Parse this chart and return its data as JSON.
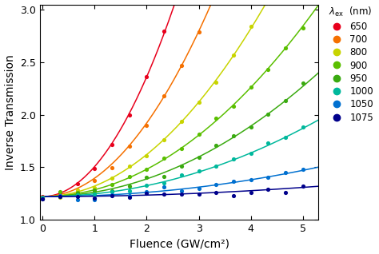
{
  "title": "",
  "xlabel": "Fluence (GW/cm²)",
  "ylabel": "Inverse Transmission",
  "xlim": [
    -0.05,
    5.3
  ],
  "ylim": [
    1.0,
    3.05
  ],
  "xticks": [
    0,
    1,
    2,
    3,
    4,
    5
  ],
  "yticks": [
    1.0,
    1.5,
    2.0,
    2.5,
    3.0
  ],
  "series": [
    {
      "label": "650",
      "color": "#e8001c",
      "beta": 0.285
    },
    {
      "label": "700",
      "color": "#f57000",
      "beta": 0.175
    },
    {
      "label": "800",
      "color": "#c8d400",
      "beta": 0.1
    },
    {
      "label": "900",
      "color": "#5abf00",
      "beta": 0.065
    },
    {
      "label": "950",
      "color": "#3aaa10",
      "beta": 0.042
    },
    {
      "label": "1000",
      "color": "#00b89c",
      "beta": 0.026
    },
    {
      "label": "1050",
      "color": "#0070d0",
      "beta": 0.01
    },
    {
      "label": "1075",
      "color": "#00008b",
      "beta": 0.0035
    }
  ],
  "T0_inv": 1.22,
  "n_scatter": 16,
  "scatter_xstart": 0.0,
  "scatter_xend": 5.0,
  "background_color": "#ffffff"
}
